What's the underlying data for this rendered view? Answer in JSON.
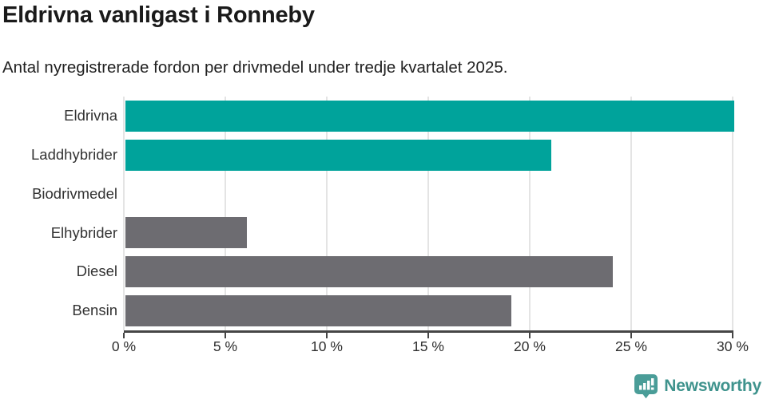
{
  "header": {
    "title": "Eldrivna vanligast i Ronneby",
    "subtitle": "Antal nyregistrerade fordon per drivmedel under tredje kvartalet 2025."
  },
  "chart_data": {
    "type": "bar",
    "orientation": "horizontal",
    "title": "Eldrivna vanligast i Ronneby",
    "subtitle": "Antal nyregistrerade fordon per drivmedel under tredje kvartalet 2025.",
    "categories": [
      "Eldrivna",
      "Laddhybrider",
      "Biodrivmedel",
      "Elhybrider",
      "Diesel",
      "Bensin"
    ],
    "values": [
      30,
      21,
      0,
      6,
      24,
      19
    ],
    "unit": "%",
    "xlim": [
      0,
      30
    ],
    "x_ticks": [
      0,
      5,
      10,
      15,
      20,
      25,
      30
    ],
    "x_tick_labels": [
      "0 %",
      "5 %",
      "10 %",
      "15 %",
      "20 %",
      "25 %",
      "30 %"
    ],
    "bar_colors": [
      "#00a39b",
      "#00a39b",
      "#6d6c71",
      "#6d6c71",
      "#6d6c71",
      "#6d6c71"
    ],
    "grid": true,
    "legend": "none",
    "ylabel": "",
    "xlabel": ""
  },
  "colors": {
    "highlight_teal": "#00a39b",
    "neutral_gray": "#6d6c71",
    "gridline": "#e4e4e4",
    "axis": "#454545",
    "title_text": "#1a1a1a",
    "label_text": "#333333"
  },
  "branding": {
    "logo_text": "Newsworthy",
    "logo_icon": "newsworthy-chart-bubble-icon",
    "logo_icon_color": "#4a9d98",
    "logo_text_color": "#3f938d"
  }
}
